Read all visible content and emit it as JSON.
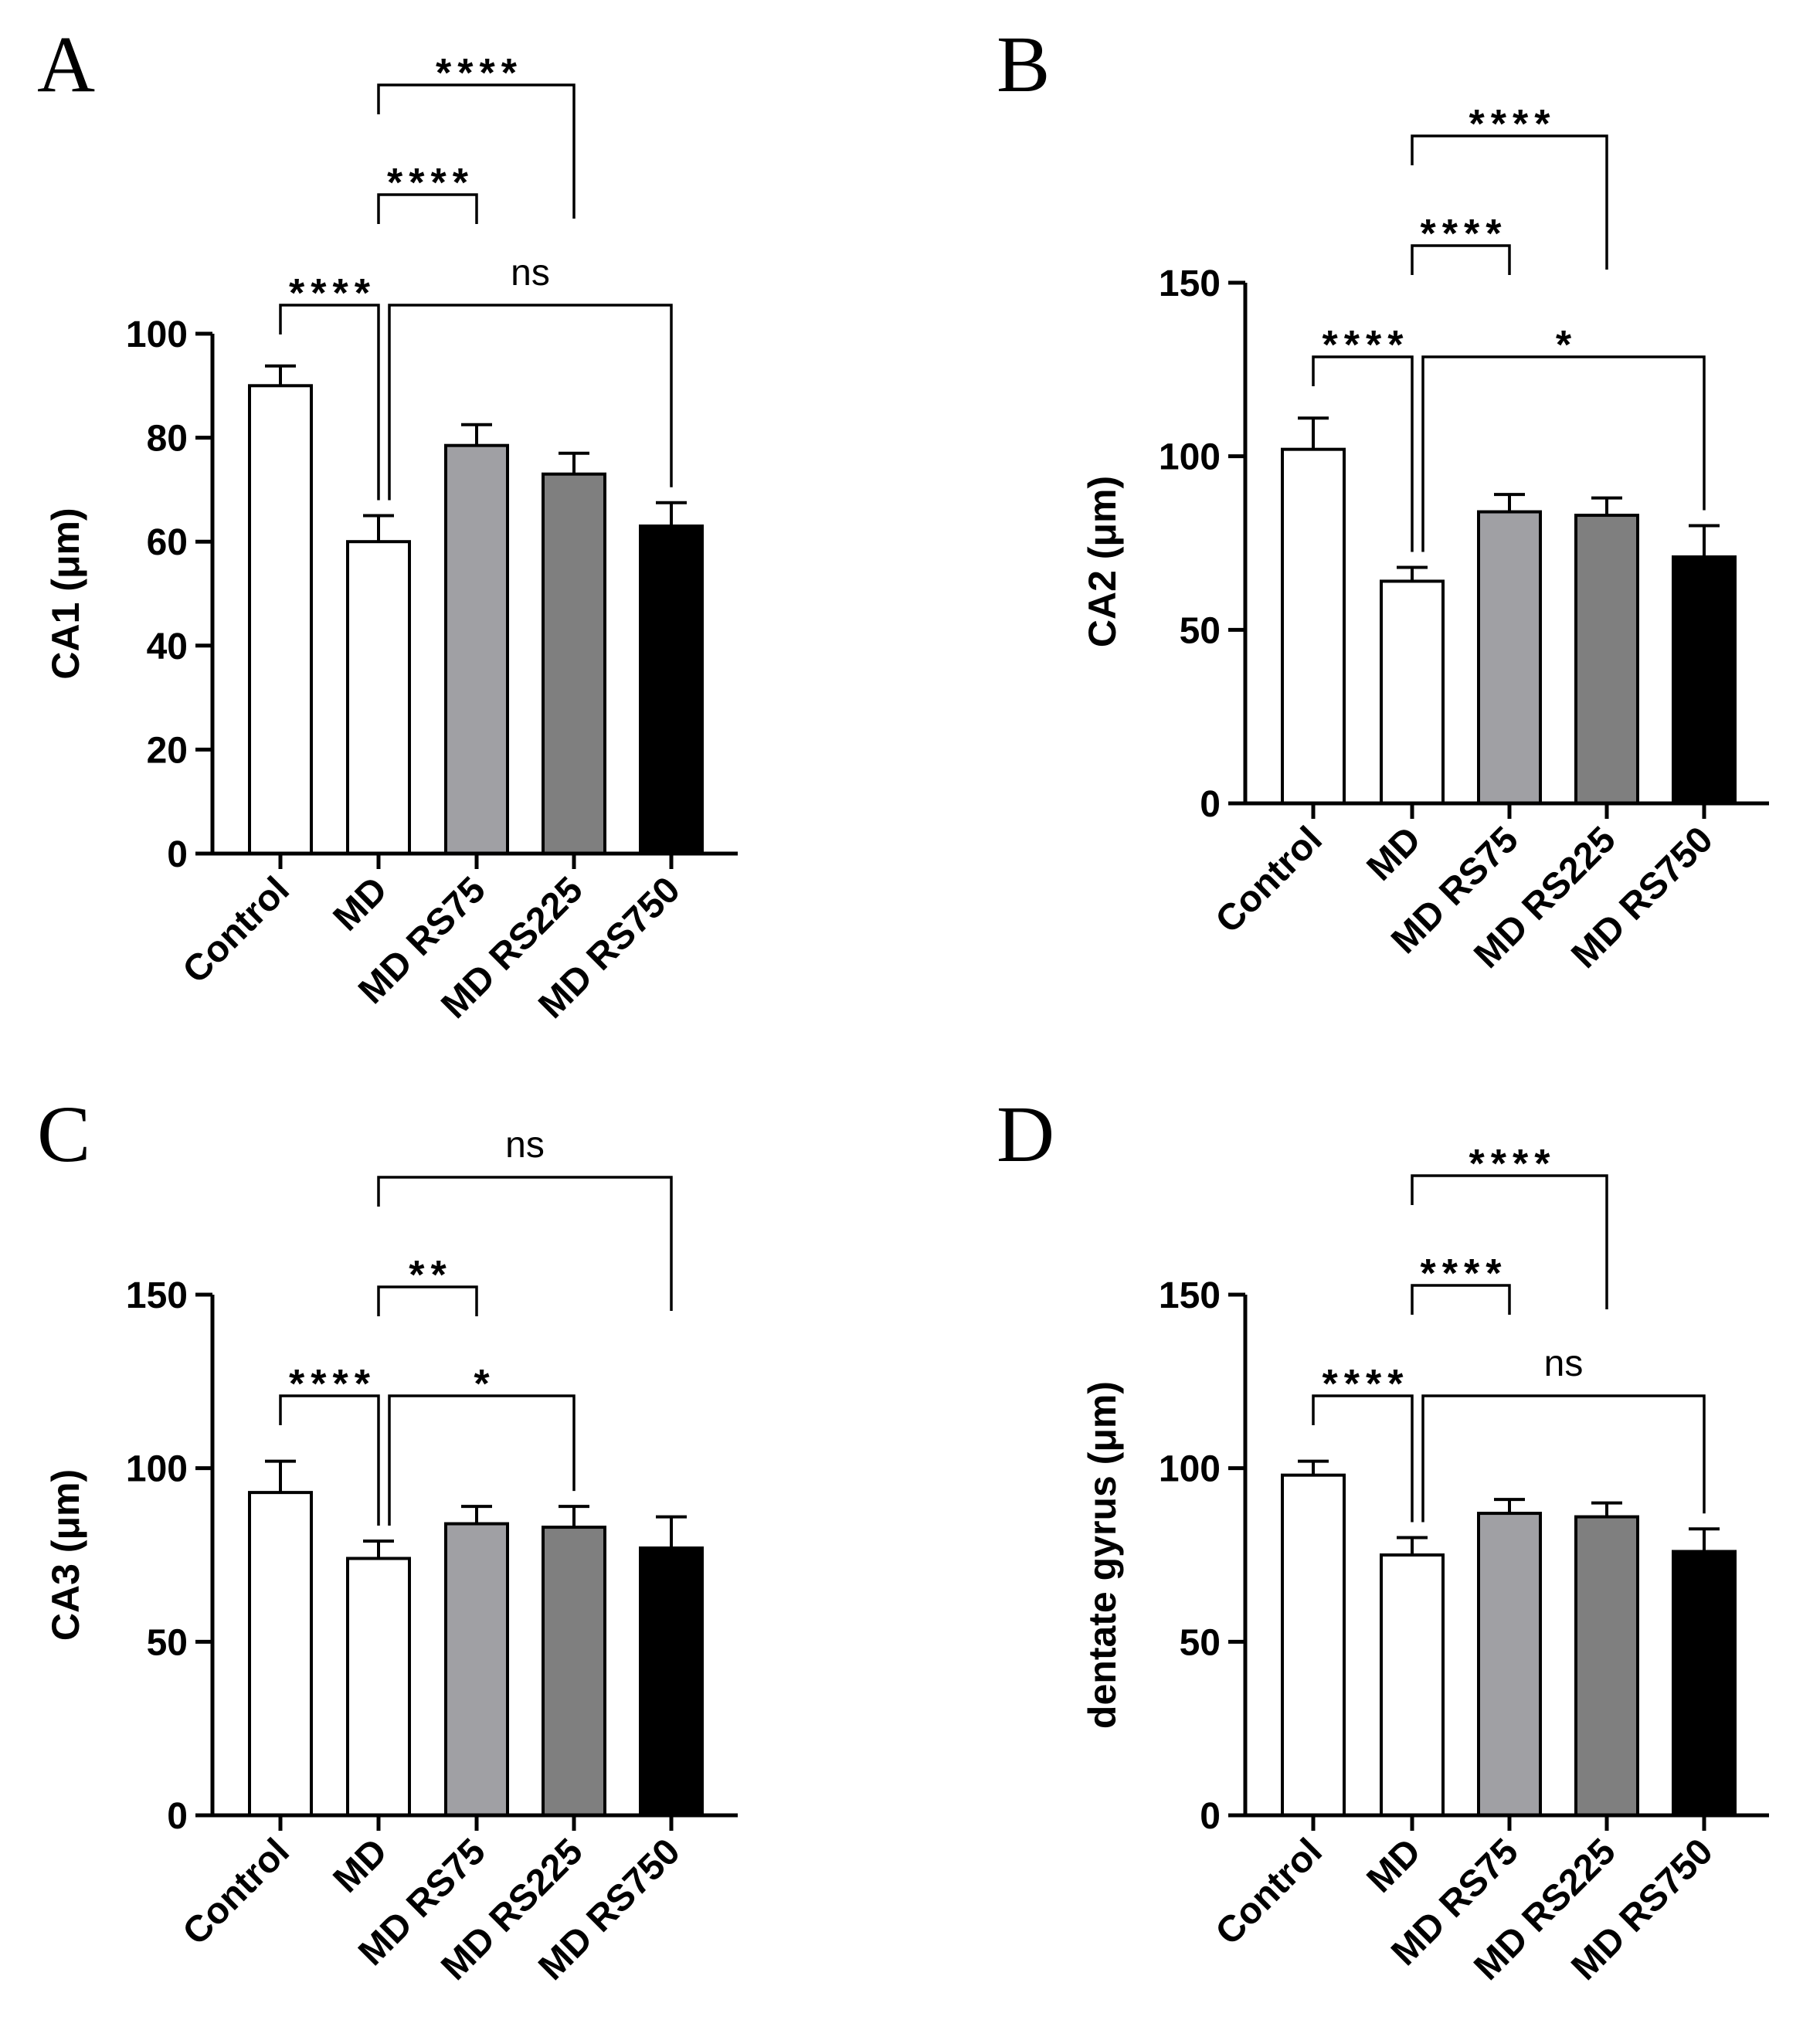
{
  "chart_data": [
    {
      "panel": "A",
      "type": "bar",
      "ylabel": "CA1 (μm)",
      "ylim": [
        0,
        100
      ],
      "yticks": [
        0,
        20,
        40,
        60,
        80,
        100
      ],
      "categories": [
        "Control",
        "MD",
        "MD RS75",
        "MD RS225",
        "MD RS750"
      ],
      "values": [
        90,
        60,
        78.5,
        73,
        63
      ],
      "errors": [
        3.8,
        5,
        4,
        4,
        4.5
      ],
      "fills": [
        "#ffffff",
        "#ffffff",
        "#a0a0a4",
        "#7f7f7f",
        "#000000"
      ],
      "comparisons": [
        {
          "from": 0,
          "to": 1,
          "label": "****"
        },
        {
          "from": 1,
          "to": 4,
          "label": "ns"
        },
        {
          "from": 1,
          "to": 2,
          "label": "****"
        },
        {
          "from": 1,
          "to": 3,
          "label": "****"
        }
      ]
    },
    {
      "panel": "B",
      "type": "bar",
      "ylabel": "CA2 (μm)",
      "ylim": [
        0,
        150
      ],
      "yticks": [
        0,
        50,
        100,
        150
      ],
      "categories": [
        "Control",
        "MD",
        "MD RS75",
        "MD RS225",
        "MD RS750"
      ],
      "values": [
        102,
        64,
        84,
        83,
        71
      ],
      "errors": [
        9,
        4,
        5,
        5,
        9
      ],
      "fills": [
        "#ffffff",
        "#ffffff",
        "#a0a0a4",
        "#7f7f7f",
        "#000000"
      ],
      "comparisons": [
        {
          "from": 0,
          "to": 1,
          "label": "****"
        },
        {
          "from": 1,
          "to": 4,
          "label": "*"
        },
        {
          "from": 1,
          "to": 2,
          "label": "****"
        },
        {
          "from": 1,
          "to": 3,
          "label": "****"
        }
      ]
    },
    {
      "panel": "C",
      "type": "bar",
      "ylabel": "CA3 (μm)",
      "ylim": [
        0,
        150
      ],
      "yticks": [
        0,
        50,
        100,
        150
      ],
      "categories": [
        "Control",
        "MD",
        "MD RS75",
        "MD RS225",
        "MD RS750"
      ],
      "values": [
        93,
        74,
        84,
        83,
        77
      ],
      "errors": [
        9,
        5,
        5,
        6,
        9
      ],
      "fills": [
        "#ffffff",
        "#ffffff",
        "#a0a0a4",
        "#7f7f7f",
        "#000000"
      ],
      "comparisons": [
        {
          "from": 0,
          "to": 1,
          "label": "****"
        },
        {
          "from": 1,
          "to": 3,
          "label": "*"
        },
        {
          "from": 1,
          "to": 2,
          "label": "**"
        },
        {
          "from": 1,
          "to": 4,
          "label": "ns"
        }
      ]
    },
    {
      "panel": "D",
      "type": "bar",
      "ylabel": "dentate gyrus (μm)",
      "ylim": [
        0,
        150
      ],
      "yticks": [
        0,
        50,
        100,
        150
      ],
      "categories": [
        "Control",
        "MD",
        "MD RS75",
        "MD RS225",
        "MD RS750"
      ],
      "values": [
        98,
        75,
        87,
        86,
        76
      ],
      "errors": [
        4,
        5,
        4,
        4,
        6.5
      ],
      "fills": [
        "#ffffff",
        "#ffffff",
        "#a0a0a4",
        "#7f7f7f",
        "#000000"
      ],
      "comparisons": [
        {
          "from": 0,
          "to": 1,
          "label": "****"
        },
        {
          "from": 1,
          "to": 4,
          "label": "ns"
        },
        {
          "from": 1,
          "to": 2,
          "label": "****"
        },
        {
          "from": 1,
          "to": 3,
          "label": "****"
        }
      ]
    }
  ]
}
